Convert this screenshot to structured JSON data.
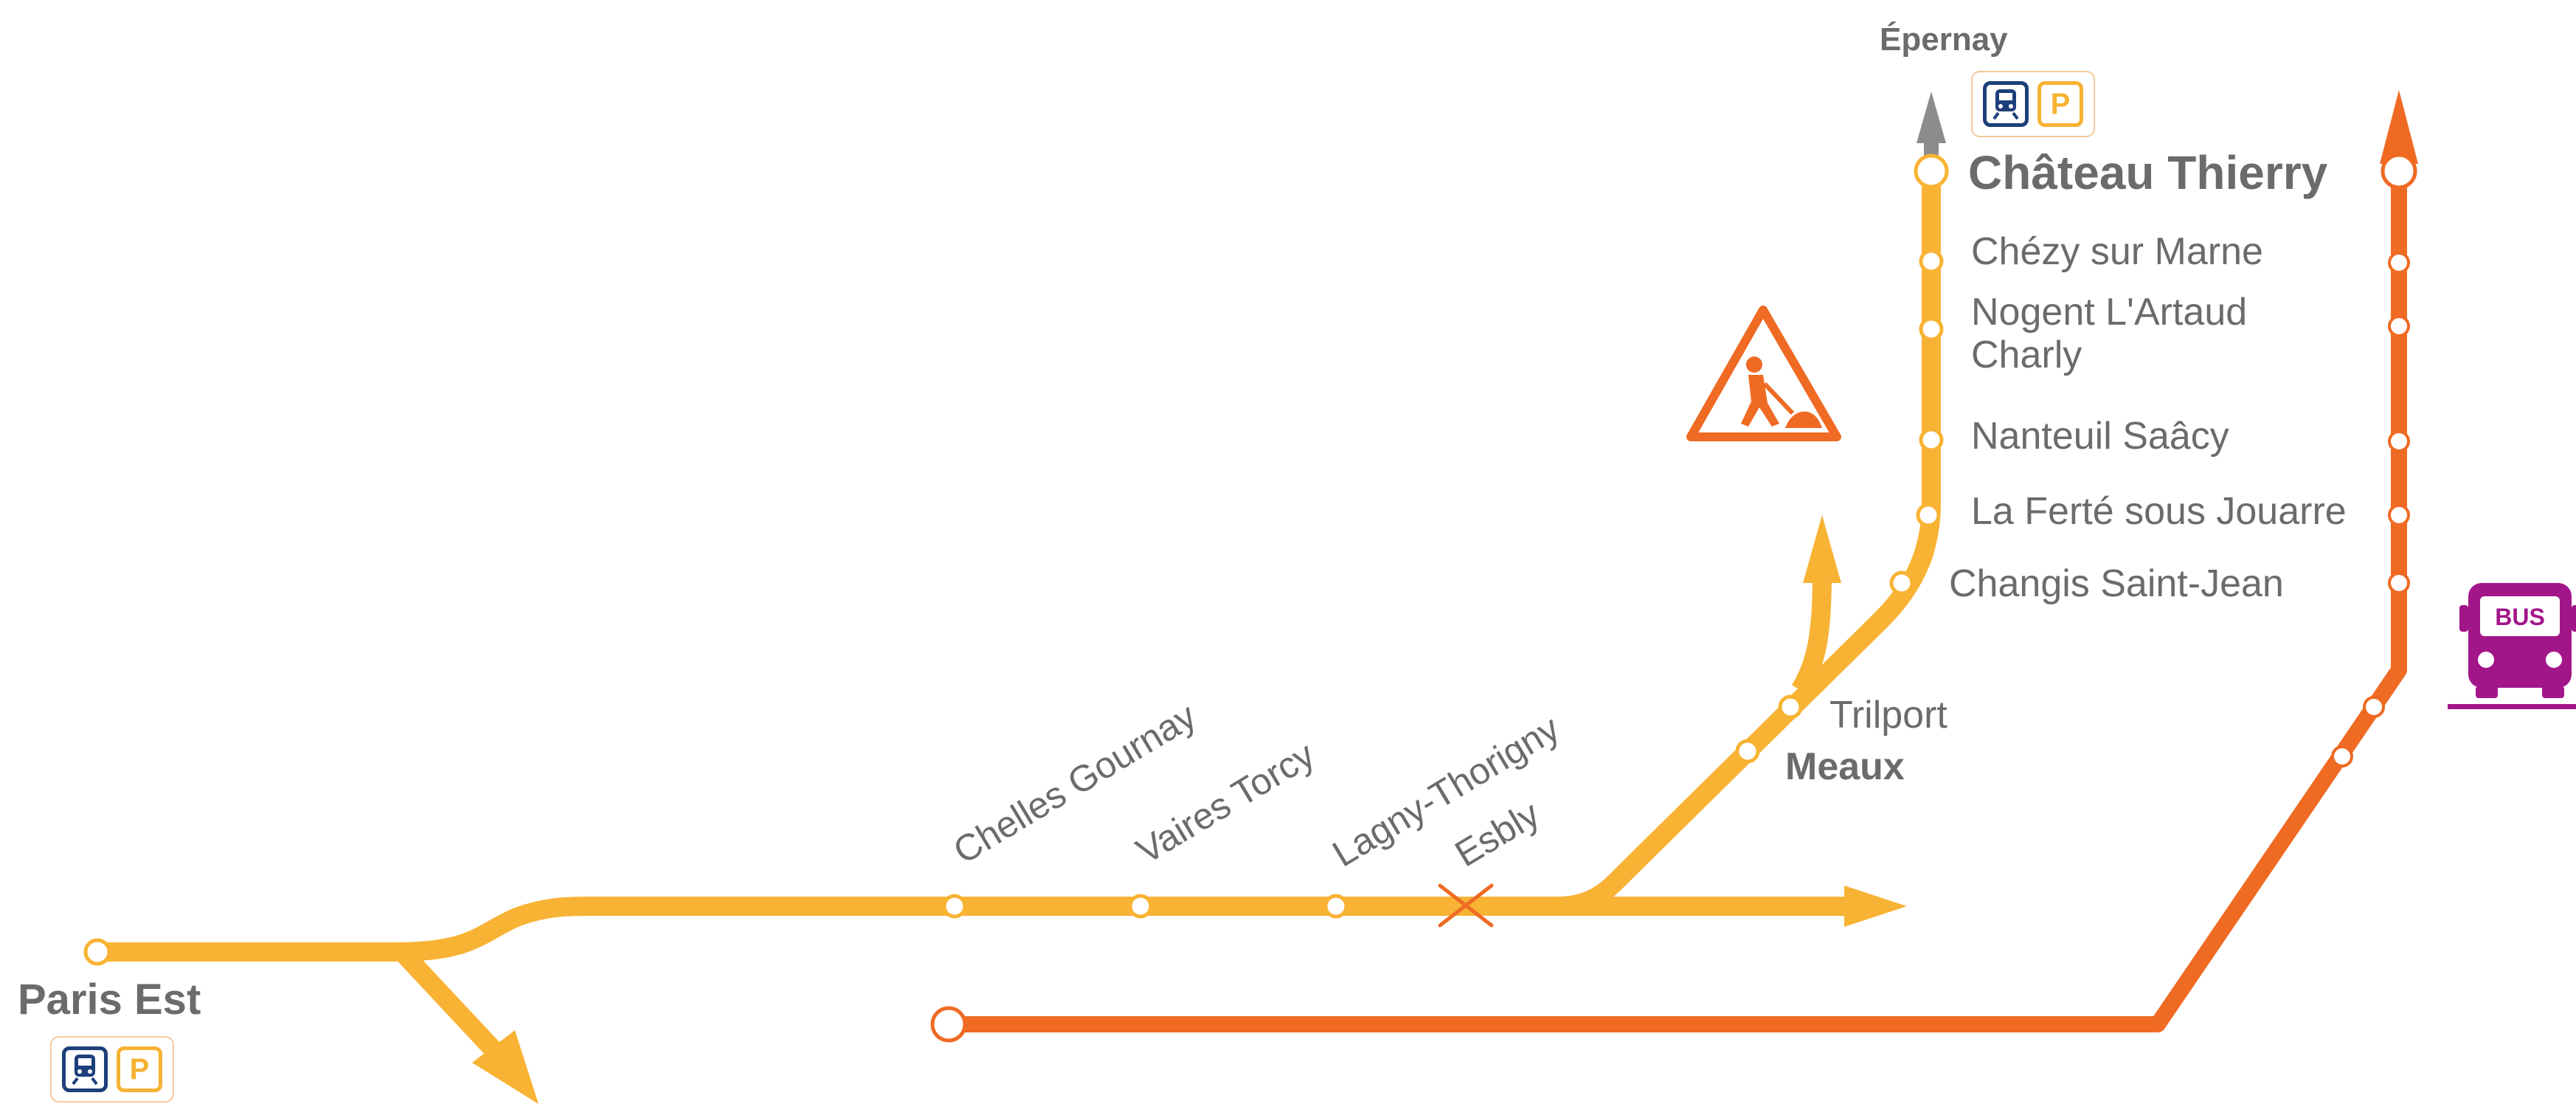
{
  "colors": {
    "main_line": "#f8b334",
    "bus_line": "#ef6a23",
    "bus_icon": "#a3168a",
    "train_icon": "#1d3f7a",
    "parking_icon": "#f6b233",
    "text": "#6b6b6b",
    "terminus_arrow": "#8c8c8c"
  },
  "stations": {
    "paris_est": "Paris Est",
    "chelles_gournay": "Chelles Gournay",
    "vaires_torcy": "Vaires Torcy",
    "lagny_thorigny": "Lagny-Thorigny",
    "esbly": "Esbly",
    "meaux": "Meaux",
    "trilport": "Trilport",
    "changis": "Changis Saint-Jean",
    "la_ferte": "La Ferté sous Jouarre",
    "nanteuil": "Nanteuil Saâcy",
    "nogent_line1": "Nogent L'Artaud",
    "nogent_line2": "Charly",
    "chezy": "Chézy sur Marne",
    "chateau_thierry": "Château Thierry",
    "epernay": "Épernay"
  },
  "services": {
    "parking_label": "P",
    "bus_label": "BUS"
  },
  "icons": {
    "works": "roadworks-warning-icon",
    "bus": "bus-icon",
    "train": "train-icon",
    "parking": "parking-icon",
    "closed_station": "cross-icon"
  }
}
